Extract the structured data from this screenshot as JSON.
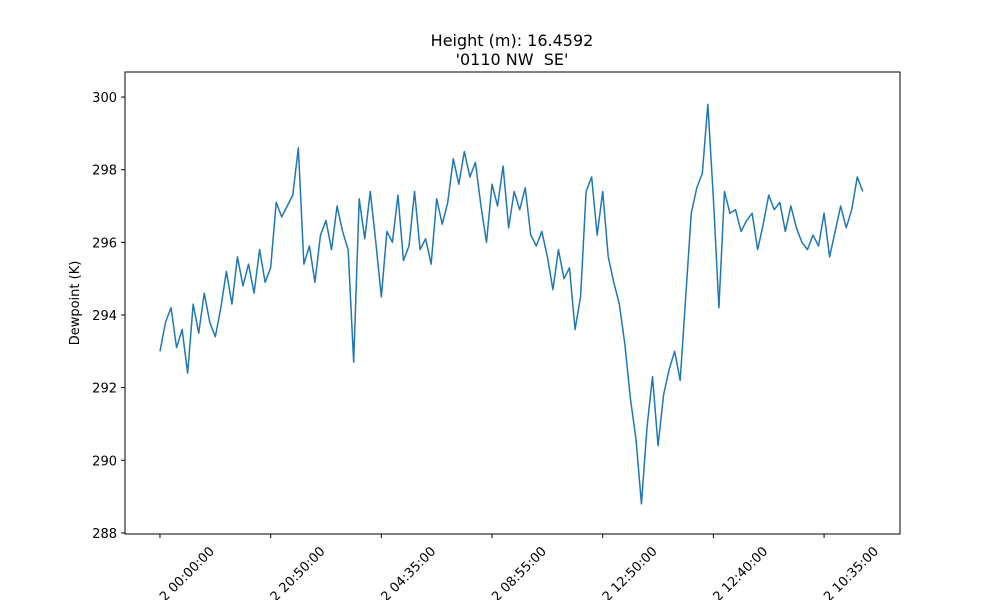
{
  "chart_data": {
    "type": "line",
    "title": "Height (m): 16.4592",
    "subtitle": "'0110 NW  SE'",
    "y_label": "Dewpoint (K)",
    "color": "#1f77b4",
    "x": [
      0,
      50,
      100,
      150,
      200,
      250,
      300,
      350,
      400,
      450,
      500,
      550,
      600,
      650,
      700,
      750,
      800,
      850,
      900,
      950,
      1000,
      1050,
      1100,
      1150,
      1200,
      1250,
      1300,
      1350,
      1400,
      1450,
      1500,
      1550,
      1600,
      1650,
      1700,
      1750,
      1800,
      1850,
      1900,
      1950,
      2000,
      2050,
      2100,
      2150,
      2200,
      2250,
      2300,
      2350,
      2400,
      2450,
      2500,
      2550,
      2600,
      2650,
      2700,
      2750,
      2800,
      2850,
      2900,
      2950,
      3000,
      3050,
      3100,
      3150,
      3200,
      3250,
      3300,
      3350,
      3400,
      3450,
      3500,
      3550,
      3600,
      3650,
      3700,
      3750,
      3800,
      3850,
      3900,
      3950,
      4000,
      4050,
      4100,
      4150,
      4200,
      4250,
      4300,
      4350,
      4400,
      4450,
      4500,
      4550,
      4600,
      4650,
      4700,
      4750,
      4800,
      4850,
      4900,
      4950,
      5000,
      5050,
      5100,
      5150,
      5200,
      5250,
      5300,
      5350,
      5400,
      5450,
      5500,
      5550,
      5600,
      5650,
      5700,
      5750,
      5800,
      5850,
      5900,
      5950,
      6000,
      6050,
      6100,
      6150,
      6200,
      6250,
      6300,
      6350
    ],
    "values": [
      293.0,
      293.8,
      294.2,
      293.1,
      293.6,
      292.4,
      294.3,
      293.5,
      294.6,
      293.8,
      293.4,
      294.2,
      295.2,
      294.3,
      295.6,
      294.8,
      295.4,
      294.6,
      295.8,
      294.9,
      295.3,
      297.1,
      296.7,
      297.0,
      297.3,
      298.6,
      295.4,
      295.9,
      294.9,
      296.2,
      296.6,
      295.8,
      297.0,
      296.3,
      295.8,
      292.7,
      297.2,
      296.1,
      297.4,
      296.0,
      294.5,
      296.3,
      296.0,
      297.3,
      295.5,
      295.9,
      297.4,
      295.8,
      296.1,
      295.4,
      297.2,
      296.5,
      297.1,
      298.3,
      297.6,
      298.5,
      297.8,
      298.2,
      297.0,
      296.0,
      297.6,
      297.0,
      298.1,
      296.4,
      297.4,
      296.9,
      297.5,
      296.2,
      295.9,
      296.3,
      295.6,
      294.7,
      295.8,
      295.0,
      295.3,
      293.6,
      294.5,
      297.4,
      297.8,
      296.2,
      297.4,
      295.6,
      294.9,
      294.3,
      293.2,
      291.7,
      290.6,
      288.8,
      290.9,
      292.3,
      290.4,
      291.8,
      292.5,
      293.0,
      292.2,
      294.5,
      296.8,
      297.5,
      297.9,
      299.8,
      297.2,
      294.2,
      297.4,
      296.8,
      296.9,
      296.3,
      296.6,
      296.8,
      295.8,
      296.5,
      297.3,
      296.9,
      297.1,
      296.3,
      297.0,
      296.4,
      296.0,
      295.8,
      296.2,
      295.9,
      296.8,
      295.6,
      296.3,
      297.0,
      296.4,
      296.9,
      297.8,
      297.4
    ],
    "xlim": [
      -316,
      6686
    ],
    "xticks": [
      {
        "value": 0,
        "label": "2 00:00:00"
      },
      {
        "value": 1000,
        "label": "2 20:50:00"
      },
      {
        "value": 2000,
        "label": "2 04:35:00"
      },
      {
        "value": 3000,
        "label": "2 08:55:00"
      },
      {
        "value": 4000,
        "label": "2 12:50:00"
      },
      {
        "value": 5000,
        "label": "2 12:40:00"
      },
      {
        "value": 6000,
        "label": "2 10:35:00"
      }
    ],
    "ylim": [
      287.97,
      300.69
    ],
    "yticks": [
      288,
      290,
      292,
      294,
      296,
      298,
      300
    ]
  }
}
